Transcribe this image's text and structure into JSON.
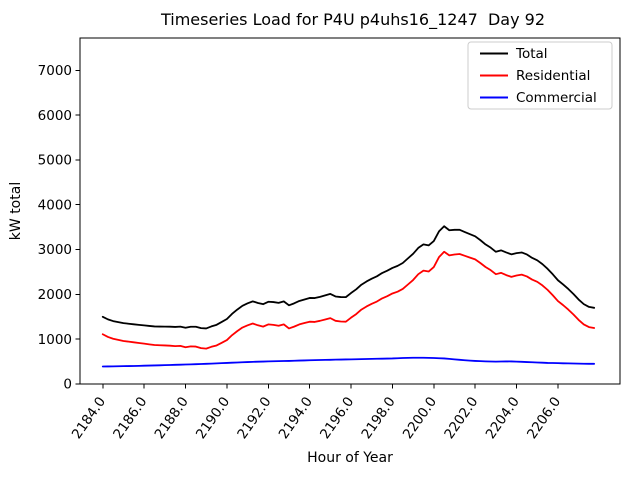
{
  "chart_data": {
    "type": "line",
    "title": "Timeseries Load for P4U p4uhs16_1247  Day 92",
    "xlabel": "Hour of Year",
    "ylabel": "kW total",
    "xlim": [
      2182.9,
      2209.0
    ],
    "ylim": [
      0,
      7720
    ],
    "grid": false,
    "legend_position": "upper right",
    "x_ticks": [
      2184,
      2186,
      2188,
      2190,
      2192,
      2194,
      2196,
      2198,
      2200,
      2202,
      2204,
      2206
    ],
    "x_tick_labels": [
      "2184.0",
      "2186.0",
      "2188.0",
      "2190.0",
      "2192.0",
      "2194.0",
      "2196.0",
      "2198.0",
      "2200.0",
      "2202.0",
      "2204.0",
      "2206.0"
    ],
    "x_tick_rotation_deg": -55,
    "y_ticks": [
      0,
      1000,
      2000,
      3000,
      4000,
      5000,
      6000,
      7000
    ],
    "y_tick_labels": [
      "0",
      "1000",
      "2000",
      "3000",
      "4000",
      "5000",
      "6000",
      "7000"
    ],
    "x_start": 2184.0,
    "x_step": 0.25,
    "x_end": 2207.75,
    "series": [
      {
        "name": "Total",
        "color": "#000000",
        "values": [
          1500,
          1442,
          1404,
          1381,
          1358,
          1345,
          1332,
          1319,
          1308,
          1296,
          1284,
          1282,
          1281,
          1279,
          1273,
          1281,
          1255,
          1278,
          1277,
          1246,
          1240,
          1285,
          1320,
          1385,
          1450,
          1565,
          1660,
          1745,
          1800,
          1844,
          1808,
          1781,
          1835,
          1828,
          1810,
          1843,
          1755,
          1799,
          1853,
          1886,
          1920,
          1918,
          1945,
          1978,
          2010,
          1953,
          1940,
          1938,
          2030,
          2113,
          2215,
          2288,
          2350,
          2403,
          2475,
          2528,
          2590,
          2635,
          2700,
          2803,
          2905,
          3036,
          3115,
          3093,
          3190,
          3405,
          3520,
          3430,
          3440,
          3440,
          3390,
          3342,
          3295,
          3210,
          3115,
          3042,
          2950,
          2982,
          2935,
          2893,
          2920,
          2935,
          2890,
          2815,
          2760,
          2675,
          2570,
          2448,
          2315,
          2222,
          2120,
          2008,
          1885,
          1782,
          1720,
          1700
        ]
      },
      {
        "name": "Residential",
        "color": "#ff0000",
        "values": [
          1110,
          1050,
          1010,
          985,
          960,
          945,
          930,
          915,
          900,
          885,
          870,
          865,
          860,
          855,
          845,
          850,
          820,
          840,
          835,
          800,
          790,
          830,
          860,
          920,
          980,
          1090,
          1180,
          1260,
          1310,
          1350,
          1310,
          1280,
          1330,
          1320,
          1300,
          1330,
          1240,
          1280,
          1330,
          1360,
          1390,
          1385,
          1410,
          1440,
          1470,
          1410,
          1395,
          1390,
          1480,
          1560,
          1660,
          1730,
          1790,
          1840,
          1910,
          1960,
          2020,
          2060,
          2120,
          2220,
          2320,
          2450,
          2530,
          2510,
          2610,
          2830,
          2950,
          2870,
          2890,
          2900,
          2860,
          2820,
          2780,
          2700,
          2610,
          2540,
          2450,
          2480,
          2430,
          2390,
          2420,
          2440,
          2400,
          2330,
          2280,
          2200,
          2100,
          1980,
          1850,
          1760,
          1660,
          1550,
          1430,
          1330,
          1270,
          1250
        ]
      },
      {
        "name": "Commercial",
        "color": "#0000ff",
        "values": [
          390,
          392,
          394,
          396,
          398,
          400,
          402,
          404,
          408,
          411,
          414,
          417,
          421,
          424,
          428,
          431,
          435,
          438,
          442,
          446,
          450,
          455,
          460,
          465,
          470,
          475,
          480,
          485,
          490,
          494,
          498,
          501,
          505,
          508,
          510,
          513,
          515,
          519,
          523,
          526,
          530,
          533,
          535,
          538,
          540,
          543,
          545,
          548,
          550,
          553,
          555,
          558,
          560,
          563,
          565,
          568,
          570,
          575,
          580,
          583,
          585,
          586,
          585,
          583,
          580,
          575,
          570,
          560,
          550,
          540,
          530,
          522,
          515,
          510,
          505,
          502,
          500,
          502,
          505,
          503,
          500,
          495,
          490,
          485,
          480,
          475,
          470,
          468,
          465,
          462,
          460,
          458,
          455,
          452,
          450,
          450
        ]
      }
    ]
  }
}
